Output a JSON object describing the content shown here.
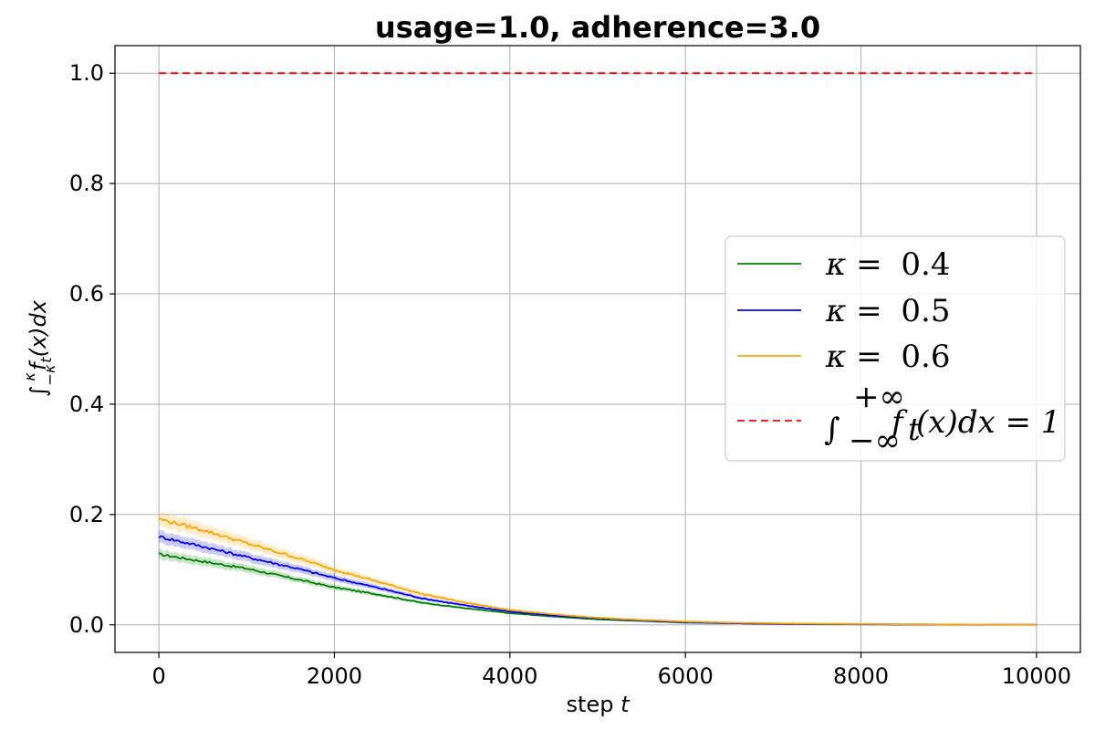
{
  "chart_data": {
    "type": "line",
    "title": "usage=1.0, adherence=3.0",
    "xlabel": "step t",
    "ylabel": "∫_{−κ}^{κ} f_t(x) dx",
    "xlim": [
      -500,
      10500
    ],
    "ylim": [
      -0.05,
      1.05
    ],
    "xticks": [
      0,
      2000,
      4000,
      6000,
      8000,
      10000
    ],
    "xtick_labels": [
      "0",
      "2000",
      "4000",
      "6000",
      "8000",
      "10000"
    ],
    "yticks": [
      0.0,
      0.2,
      0.4,
      0.6,
      0.8,
      1.0
    ],
    "ytick_labels": [
      "0.0",
      "0.2",
      "0.4",
      "0.6",
      "0.8",
      "1.0"
    ],
    "grid": true,
    "legend_position": "right",
    "x": [
      0,
      500,
      1000,
      1500,
      2000,
      2500,
      3000,
      3500,
      4000,
      4500,
      5000,
      5500,
      6000,
      6500,
      7000,
      7500,
      8000,
      8500,
      9000,
      9500,
      10000
    ],
    "series": [
      {
        "name": "κ = 0.4",
        "legend_parts": [
          "κ",
          " = ",
          "0.4"
        ],
        "color": "#008000",
        "style": "solid",
        "band": true,
        "values": [
          0.128,
          0.115,
          0.102,
          0.085,
          0.068,
          0.055,
          0.04,
          0.03,
          0.021,
          0.015,
          0.01,
          0.007,
          0.004,
          0.003,
          0.002,
          0.001,
          0.001,
          0.0007,
          0.0005,
          0.0003,
          0.0002
        ]
      },
      {
        "name": "κ = 0.5",
        "legend_parts": [
          "κ",
          " = ",
          "0.5"
        ],
        "color": "#0000ff",
        "style": "solid",
        "band": true,
        "values": [
          0.16,
          0.142,
          0.123,
          0.105,
          0.085,
          0.067,
          0.048,
          0.035,
          0.024,
          0.017,
          0.012,
          0.008,
          0.005,
          0.003,
          0.002,
          0.0015,
          0.001,
          0.0008,
          0.0006,
          0.0004,
          0.0003
        ]
      },
      {
        "name": "κ = 0.6",
        "legend_parts": [
          "κ",
          " = ",
          "0.6"
        ],
        "color": "#ffa500",
        "style": "solid",
        "band": true,
        "values": [
          0.192,
          0.172,
          0.148,
          0.125,
          0.1,
          0.078,
          0.056,
          0.04,
          0.027,
          0.019,
          0.013,
          0.009,
          0.006,
          0.004,
          0.003,
          0.002,
          0.0015,
          0.001,
          0.0008,
          0.0005,
          0.0004
        ]
      },
      {
        "name": "∫_{−∞}^{+∞} f_t(x) dx = 1",
        "legend_parts": [
          "∫",
          "+∞",
          "−∞",
          "f",
          "t",
          "(x)dx = 1"
        ],
        "color": "#ff0000",
        "style": "dashed",
        "band": false,
        "values": [
          1.0,
          1.0,
          1.0,
          1.0,
          1.0,
          1.0,
          1.0,
          1.0,
          1.0,
          1.0,
          1.0,
          1.0,
          1.0,
          1.0,
          1.0,
          1.0,
          1.0,
          1.0,
          1.0,
          1.0,
          1.0
        ]
      }
    ]
  }
}
